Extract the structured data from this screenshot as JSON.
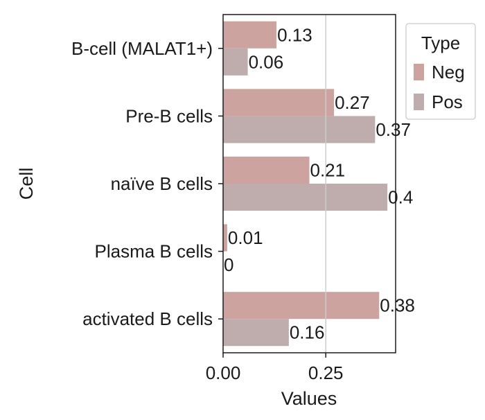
{
  "chart_data": {
    "type": "bar",
    "orientation": "horizontal",
    "categories": [
      "B-cell (MALAT1+)",
      "Pre-B cells",
      "naïve B cells",
      "Plasma B cells",
      "activated B cells"
    ],
    "series": [
      {
        "name": "Neg",
        "values": [
          0.13,
          0.27,
          0.21,
          0.01,
          0.38
        ],
        "labels": [
          "0.13",
          "0.27",
          "0.21",
          "0.01",
          "0.38"
        ],
        "color": "#cca39f"
      },
      {
        "name": "Pos",
        "values": [
          0.06,
          0.37,
          0.4,
          0.0,
          0.16
        ],
        "labels": [
          "0.06",
          "0.37",
          "0.4",
          "0",
          "0.16"
        ],
        "color": "#bfadad"
      }
    ],
    "xlabel": "Values",
    "ylabel": "Cell",
    "xlim": [
      0,
      0.42
    ],
    "xticks": [
      0.0,
      0.25
    ],
    "xtick_labels": [
      "0.00",
      "0.25"
    ],
    "reference_line": 0.25,
    "legend": {
      "title": "Type",
      "placement": "outside-top-right"
    },
    "grid": false
  }
}
